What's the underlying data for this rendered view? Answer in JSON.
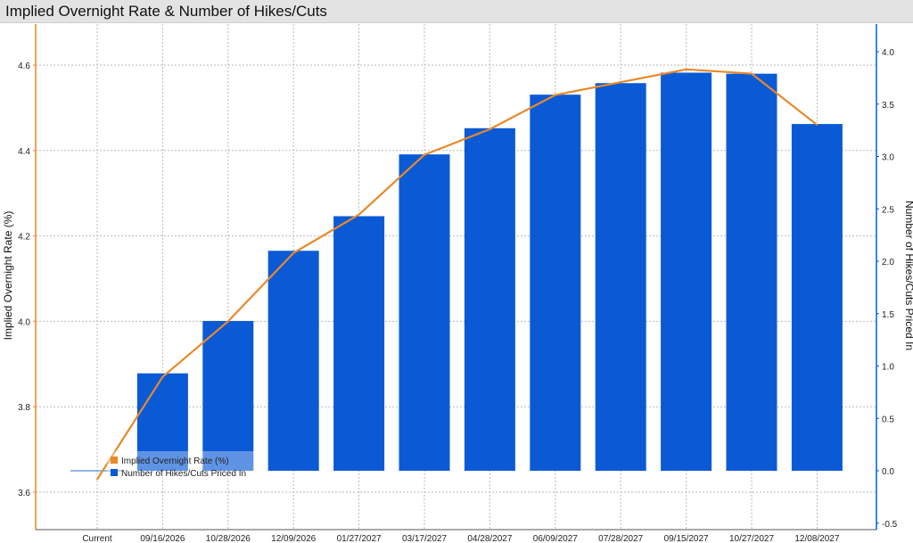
{
  "chart_data": {
    "type": "bar",
    "title": "Implied Overnight Rate & Number of Hikes/Cuts",
    "categories": [
      "Current",
      "09/16/2026",
      "10/28/2026",
      "12/09/2026",
      "01/27/2027",
      "03/17/2027",
      "04/28/2027",
      "06/09/2027",
      "07/28/2027",
      "09/15/2027",
      "10/27/2027",
      "12/08/2027"
    ],
    "ylabel": "Implied Overnight Rate (%)",
    "y2label": "Number of Hikes/Cuts Priced In",
    "ylim": [
      3.6,
      4.7
    ],
    "y2lim": [
      -0.5,
      4.2
    ],
    "yticks": [
      "3.6",
      "3.8",
      "4.0",
      "4.2",
      "4.4",
      "4.6"
    ],
    "y2ticks": [
      "-0.5",
      "0.0",
      "0.5",
      "1.0",
      "1.5",
      "2.0",
      "2.5",
      "3.0",
      "3.5",
      "4.0"
    ],
    "grid": true,
    "legend_position": "bottom-left",
    "series": [
      {
        "name": "Implied Overnight Rate (%)",
        "type": "line",
        "axis": "left",
        "color": "#e8892a",
        "values": [
          3.63,
          3.87,
          4.0,
          4.16,
          4.25,
          4.39,
          4.45,
          4.53,
          4.56,
          4.59,
          4.58,
          4.46
        ]
      },
      {
        "name": "Number of Hikes/Cuts Priced In",
        "type": "bar",
        "axis": "right",
        "color": "#0a5ad6",
        "values": [
          0.0,
          0.93,
          1.43,
          2.1,
          2.43,
          3.02,
          3.27,
          3.59,
          3.7,
          3.8,
          3.79,
          3.31
        ]
      }
    ]
  }
}
